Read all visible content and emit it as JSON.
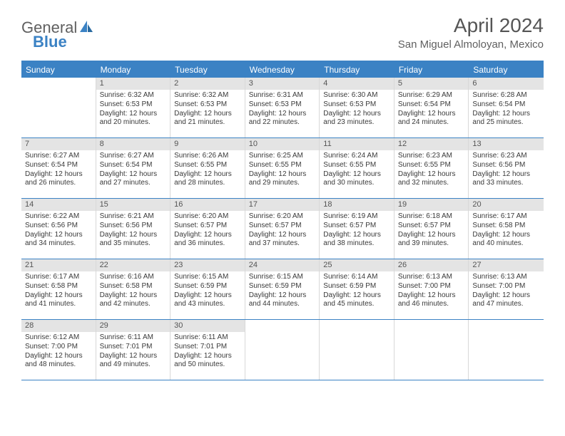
{
  "logo": {
    "word1": "General",
    "word2": "Blue"
  },
  "title": "April 2024",
  "location": "San Miguel Almoloyan, Mexico",
  "colors": {
    "accent": "#3b82c4",
    "header_bg": "#3b82c4",
    "header_text": "#ffffff",
    "daynum_bg": "#e4e4e4",
    "cell_border": "#d8d8d8",
    "body_text": "#3a3a3a"
  },
  "day_names": [
    "Sunday",
    "Monday",
    "Tuesday",
    "Wednesday",
    "Thursday",
    "Friday",
    "Saturday"
  ],
  "weeks": [
    [
      {
        "n": "",
        "sr": "",
        "ss": "",
        "dl": ""
      },
      {
        "n": "1",
        "sr": "Sunrise: 6:32 AM",
        "ss": "Sunset: 6:53 PM",
        "dl": "Daylight: 12 hours and 20 minutes."
      },
      {
        "n": "2",
        "sr": "Sunrise: 6:32 AM",
        "ss": "Sunset: 6:53 PM",
        "dl": "Daylight: 12 hours and 21 minutes."
      },
      {
        "n": "3",
        "sr": "Sunrise: 6:31 AM",
        "ss": "Sunset: 6:53 PM",
        "dl": "Daylight: 12 hours and 22 minutes."
      },
      {
        "n": "4",
        "sr": "Sunrise: 6:30 AM",
        "ss": "Sunset: 6:53 PM",
        "dl": "Daylight: 12 hours and 23 minutes."
      },
      {
        "n": "5",
        "sr": "Sunrise: 6:29 AM",
        "ss": "Sunset: 6:54 PM",
        "dl": "Daylight: 12 hours and 24 minutes."
      },
      {
        "n": "6",
        "sr": "Sunrise: 6:28 AM",
        "ss": "Sunset: 6:54 PM",
        "dl": "Daylight: 12 hours and 25 minutes."
      }
    ],
    [
      {
        "n": "7",
        "sr": "Sunrise: 6:27 AM",
        "ss": "Sunset: 6:54 PM",
        "dl": "Daylight: 12 hours and 26 minutes."
      },
      {
        "n": "8",
        "sr": "Sunrise: 6:27 AM",
        "ss": "Sunset: 6:54 PM",
        "dl": "Daylight: 12 hours and 27 minutes."
      },
      {
        "n": "9",
        "sr": "Sunrise: 6:26 AM",
        "ss": "Sunset: 6:55 PM",
        "dl": "Daylight: 12 hours and 28 minutes."
      },
      {
        "n": "10",
        "sr": "Sunrise: 6:25 AM",
        "ss": "Sunset: 6:55 PM",
        "dl": "Daylight: 12 hours and 29 minutes."
      },
      {
        "n": "11",
        "sr": "Sunrise: 6:24 AM",
        "ss": "Sunset: 6:55 PM",
        "dl": "Daylight: 12 hours and 30 minutes."
      },
      {
        "n": "12",
        "sr": "Sunrise: 6:23 AM",
        "ss": "Sunset: 6:55 PM",
        "dl": "Daylight: 12 hours and 32 minutes."
      },
      {
        "n": "13",
        "sr": "Sunrise: 6:23 AM",
        "ss": "Sunset: 6:56 PM",
        "dl": "Daylight: 12 hours and 33 minutes."
      }
    ],
    [
      {
        "n": "14",
        "sr": "Sunrise: 6:22 AM",
        "ss": "Sunset: 6:56 PM",
        "dl": "Daylight: 12 hours and 34 minutes."
      },
      {
        "n": "15",
        "sr": "Sunrise: 6:21 AM",
        "ss": "Sunset: 6:56 PM",
        "dl": "Daylight: 12 hours and 35 minutes."
      },
      {
        "n": "16",
        "sr": "Sunrise: 6:20 AM",
        "ss": "Sunset: 6:57 PM",
        "dl": "Daylight: 12 hours and 36 minutes."
      },
      {
        "n": "17",
        "sr": "Sunrise: 6:20 AM",
        "ss": "Sunset: 6:57 PM",
        "dl": "Daylight: 12 hours and 37 minutes."
      },
      {
        "n": "18",
        "sr": "Sunrise: 6:19 AM",
        "ss": "Sunset: 6:57 PM",
        "dl": "Daylight: 12 hours and 38 minutes."
      },
      {
        "n": "19",
        "sr": "Sunrise: 6:18 AM",
        "ss": "Sunset: 6:57 PM",
        "dl": "Daylight: 12 hours and 39 minutes."
      },
      {
        "n": "20",
        "sr": "Sunrise: 6:17 AM",
        "ss": "Sunset: 6:58 PM",
        "dl": "Daylight: 12 hours and 40 minutes."
      }
    ],
    [
      {
        "n": "21",
        "sr": "Sunrise: 6:17 AM",
        "ss": "Sunset: 6:58 PM",
        "dl": "Daylight: 12 hours and 41 minutes."
      },
      {
        "n": "22",
        "sr": "Sunrise: 6:16 AM",
        "ss": "Sunset: 6:58 PM",
        "dl": "Daylight: 12 hours and 42 minutes."
      },
      {
        "n": "23",
        "sr": "Sunrise: 6:15 AM",
        "ss": "Sunset: 6:59 PM",
        "dl": "Daylight: 12 hours and 43 minutes."
      },
      {
        "n": "24",
        "sr": "Sunrise: 6:15 AM",
        "ss": "Sunset: 6:59 PM",
        "dl": "Daylight: 12 hours and 44 minutes."
      },
      {
        "n": "25",
        "sr": "Sunrise: 6:14 AM",
        "ss": "Sunset: 6:59 PM",
        "dl": "Daylight: 12 hours and 45 minutes."
      },
      {
        "n": "26",
        "sr": "Sunrise: 6:13 AM",
        "ss": "Sunset: 7:00 PM",
        "dl": "Daylight: 12 hours and 46 minutes."
      },
      {
        "n": "27",
        "sr": "Sunrise: 6:13 AM",
        "ss": "Sunset: 7:00 PM",
        "dl": "Daylight: 12 hours and 47 minutes."
      }
    ],
    [
      {
        "n": "28",
        "sr": "Sunrise: 6:12 AM",
        "ss": "Sunset: 7:00 PM",
        "dl": "Daylight: 12 hours and 48 minutes."
      },
      {
        "n": "29",
        "sr": "Sunrise: 6:11 AM",
        "ss": "Sunset: 7:01 PM",
        "dl": "Daylight: 12 hours and 49 minutes."
      },
      {
        "n": "30",
        "sr": "Sunrise: 6:11 AM",
        "ss": "Sunset: 7:01 PM",
        "dl": "Daylight: 12 hours and 50 minutes."
      },
      {
        "n": "",
        "sr": "",
        "ss": "",
        "dl": ""
      },
      {
        "n": "",
        "sr": "",
        "ss": "",
        "dl": ""
      },
      {
        "n": "",
        "sr": "",
        "ss": "",
        "dl": ""
      },
      {
        "n": "",
        "sr": "",
        "ss": "",
        "dl": ""
      }
    ]
  ]
}
